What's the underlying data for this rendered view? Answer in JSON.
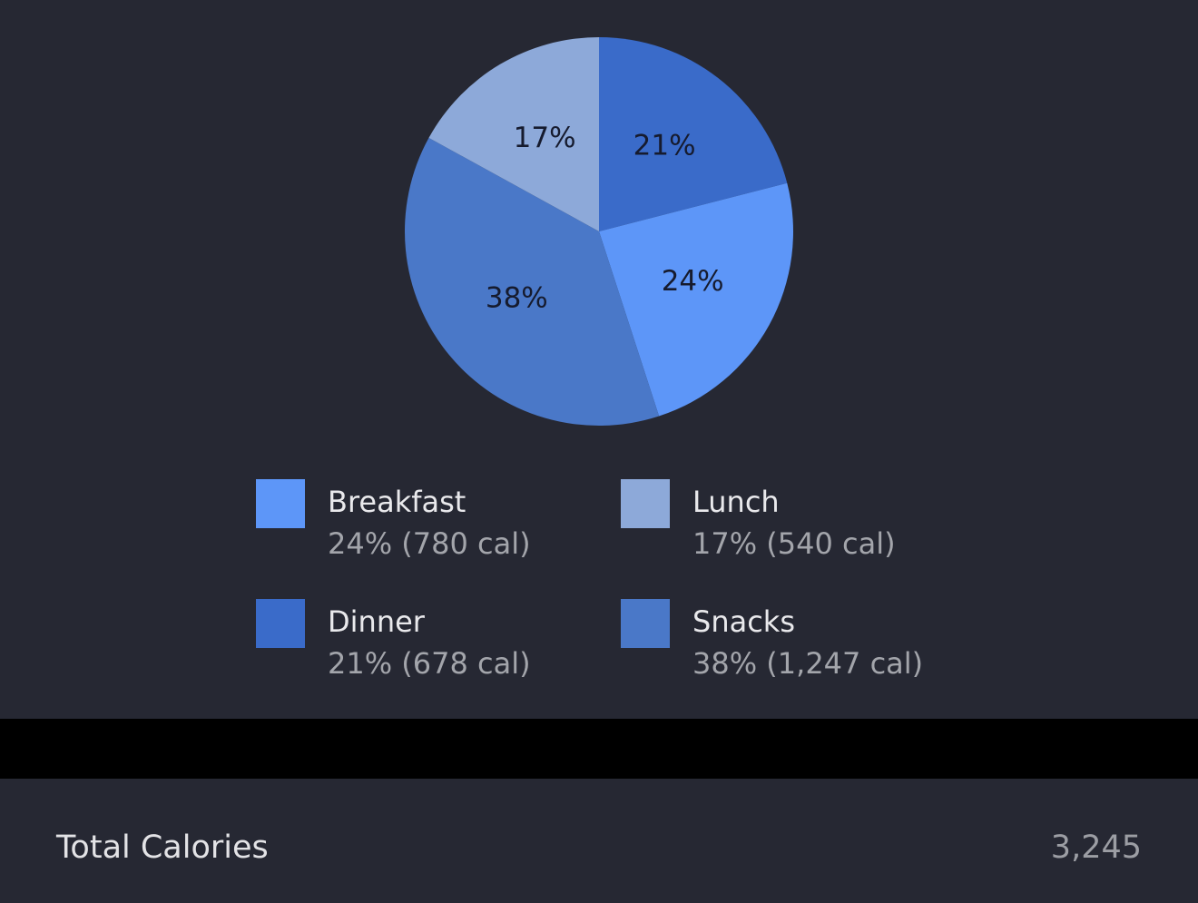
{
  "chart_data": {
    "type": "pie",
    "categories": [
      "Dinner",
      "Breakfast",
      "Snacks",
      "Lunch"
    ],
    "values": [
      21,
      24,
      38,
      17
    ],
    "value_labels": [
      "21%",
      "24%",
      "38%",
      "17%"
    ],
    "colors": [
      "#3a6bc9",
      "#5d96f8",
      "#4a78c8",
      "#8da9d9"
    ],
    "legend_details": [
      "21% (678 cal)",
      "24% (780 cal)",
      "38% (1,247 cal)",
      "17% (540 cal)"
    ]
  },
  "summary": {
    "label": "Total Calories",
    "value": "3,245"
  }
}
